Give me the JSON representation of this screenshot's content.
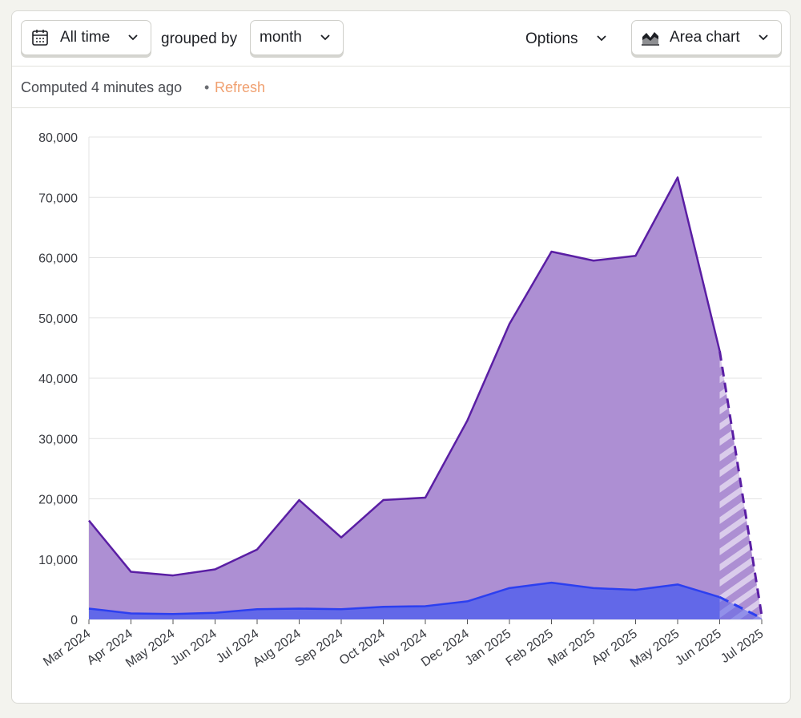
{
  "toolbar": {
    "date_range_label": "All time",
    "grouped_by_label": "grouped by",
    "interval_label": "month",
    "options_label": "Options",
    "chart_type_label": "Area chart"
  },
  "status": {
    "computed_text": "Computed 4 minutes ago",
    "separator": "•",
    "refresh_label": "Refresh"
  },
  "colors": {
    "accent": "#f0a070",
    "series_1_line": "#5a1ea4",
    "series_1_fill": "#ad8fd3",
    "series_2_line": "#2c3ff0",
    "series_2_fill": "#6268e8"
  },
  "chart_data": {
    "type": "area",
    "x": [
      "Mar 2024",
      "Apr 2024",
      "May 2024",
      "Jun 2024",
      "Jul 2024",
      "Aug 2024",
      "Sep 2024",
      "Oct 2024",
      "Nov 2024",
      "Dec 2024",
      "Jan 2025",
      "Feb 2025",
      "Mar 2025",
      "Apr 2025",
      "May 2025",
      "Jun 2025",
      "Jul 2025"
    ],
    "series": [
      {
        "values": [
          16400,
          7900,
          7300,
          8300,
          11600,
          19800,
          13600,
          19800,
          20200,
          33000,
          49000,
          61000,
          59500,
          60300,
          73300,
          44500,
          600
        ]
      },
      {
        "values": [
          1800,
          1000,
          900,
          1100,
          1700,
          1800,
          1700,
          2100,
          2200,
          3000,
          5200,
          6100,
          5200,
          4900,
          5800,
          3700,
          200
        ]
      }
    ],
    "incomplete_last_period": true,
    "ylim": [
      0,
      80000
    ],
    "yticks": [
      "0",
      "10,000",
      "20,000",
      "30,000",
      "40,000",
      "50,000",
      "60,000",
      "70,000",
      "80,000"
    ],
    "grid": true
  }
}
